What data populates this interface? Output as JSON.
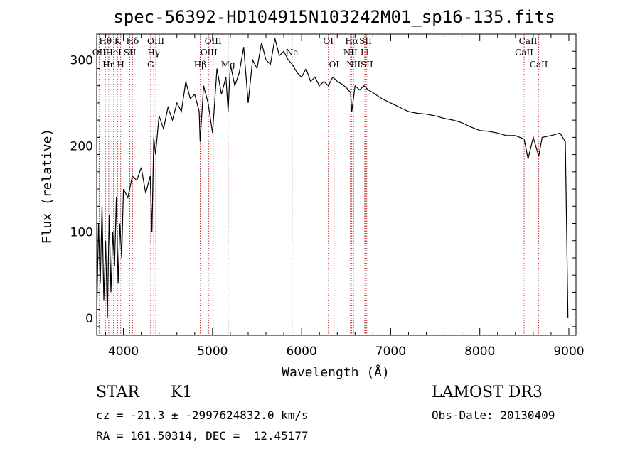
{
  "chart_data": {
    "type": "line",
    "title": "spec-56392-HD104915N103242M01_sp16-135.fits",
    "xlabel": "Wavelength (Å)",
    "ylabel": "Flux (relative)",
    "xlim": [
      3700,
      9080
    ],
    "ylim": [
      -20,
      330
    ],
    "xticks": [
      4000,
      5000,
      6000,
      7000,
      8000,
      9000
    ],
    "yticks": [
      0,
      100,
      200,
      300
    ],
    "ytick_labels": [
      "0",
      "100",
      "200",
      "300"
    ],
    "series": [
      {
        "name": "flux",
        "x": [
          3700,
          3720,
          3740,
          3760,
          3780,
          3800,
          3820,
          3840,
          3860,
          3880,
          3900,
          3920,
          3940,
          3960,
          3980,
          4000,
          4050,
          4100,
          4150,
          4200,
          4250,
          4300,
          4320,
          4340,
          4360,
          4400,
          4450,
          4500,
          4550,
          4600,
          4650,
          4700,
          4750,
          4800,
          4850,
          4861,
          4900,
          4950,
          5000,
          5050,
          5100,
          5150,
          5175,
          5200,
          5250,
          5300,
          5350,
          5400,
          5450,
          5500,
          5550,
          5600,
          5650,
          5700,
          5750,
          5800,
          5850,
          5893,
          5950,
          6000,
          6050,
          6100,
          6150,
          6200,
          6250,
          6300,
          6350,
          6400,
          6450,
          6500,
          6550,
          6563,
          6600,
          6650,
          6700,
          6750,
          6800,
          6900,
          7000,
          7100,
          7200,
          7300,
          7400,
          7500,
          7600,
          7700,
          7800,
          7900,
          8000,
          8100,
          8200,
          8300,
          8400,
          8498,
          8542,
          8600,
          8662,
          8700,
          8800,
          8900,
          8960,
          8990
        ],
        "values": [
          0,
          110,
          40,
          130,
          20,
          90,
          0,
          120,
          30,
          100,
          60,
          140,
          40,
          110,
          70,
          150,
          140,
          165,
          160,
          175,
          145,
          165,
          100,
          210,
          190,
          235,
          220,
          245,
          230,
          250,
          240,
          275,
          255,
          260,
          240,
          205,
          270,
          250,
          215,
          290,
          260,
          280,
          240,
          295,
          270,
          285,
          315,
          250,
          300,
          290,
          320,
          300,
          295,
          325,
          305,
          310,
          300,
          295,
          285,
          280,
          290,
          275,
          280,
          270,
          275,
          270,
          280,
          275,
          272,
          268,
          262,
          240,
          270,
          265,
          270,
          265,
          262,
          255,
          250,
          245,
          240,
          238,
          237,
          235,
          232,
          230,
          227,
          222,
          218,
          217,
          215,
          212,
          212,
          208,
          185,
          210,
          188,
          210,
          212,
          215,
          205,
          0
        ]
      }
    ],
    "emission_lines": [
      {
        "label": "Hθ",
        "wave": 3798,
        "row": 0
      },
      {
        "label": "OII",
        "wave": 3727,
        "row": 1
      },
      {
        "label": "Hη",
        "wave": 3835,
        "row": 2
      },
      {
        "label": "K",
        "wave": 3934,
        "row": 0
      },
      {
        "label": "HeI",
        "wave": 3889,
        "row": 1
      },
      {
        "label": "H",
        "wave": 3969,
        "row": 2
      },
      {
        "label": "SII",
        "wave": 4072,
        "row": 1
      },
      {
        "label": "Hδ",
        "wave": 4102,
        "row": 0
      },
      {
        "label": "OIII",
        "wave": 4363,
        "row": 0
      },
      {
        "label": "Hγ",
        "wave": 4340,
        "row": 1
      },
      {
        "label": "G",
        "wave": 4305,
        "row": 2
      },
      {
        "label": "Hβ",
        "wave": 4861,
        "row": 2
      },
      {
        "label": "OIII",
        "wave": 4959,
        "row": 1
      },
      {
        "label": "OIII",
        "wave": 5007,
        "row": 0
      },
      {
        "label": "Mg",
        "wave": 5175,
        "row": 2
      },
      {
        "label": "Na",
        "wave": 5893,
        "row": 1
      },
      {
        "label": "OI",
        "wave": 6300,
        "row": 0
      },
      {
        "label": "OI",
        "wave": 6364,
        "row": 2
      },
      {
        "label": "Hα",
        "wave": 6563,
        "row": 0
      },
      {
        "label": "NII",
        "wave": 6548,
        "row": 1
      },
      {
        "label": "NII",
        "wave": 6583,
        "row": 2
      },
      {
        "label": "SII",
        "wave": 6717,
        "row": 0
      },
      {
        "label": "Li",
        "wave": 6708,
        "row": 1
      },
      {
        "label": "SII",
        "wave": 6731,
        "row": 2
      },
      {
        "label": "CaII",
        "wave": 8542,
        "row": 0
      },
      {
        "label": "CaII",
        "wave": 8498,
        "row": 1
      },
      {
        "label": "CaII",
        "wave": 8662,
        "row": 2
      }
    ]
  },
  "info": {
    "class": "STAR",
    "subclass": "K1",
    "survey": "LAMOST DR3",
    "cz": "cz = -21.3 ± -2997624832.0 km/s",
    "obs_date": "Obs-Date: 20130409",
    "radec": "RA = 161.50314, DEC =  12.45177"
  }
}
